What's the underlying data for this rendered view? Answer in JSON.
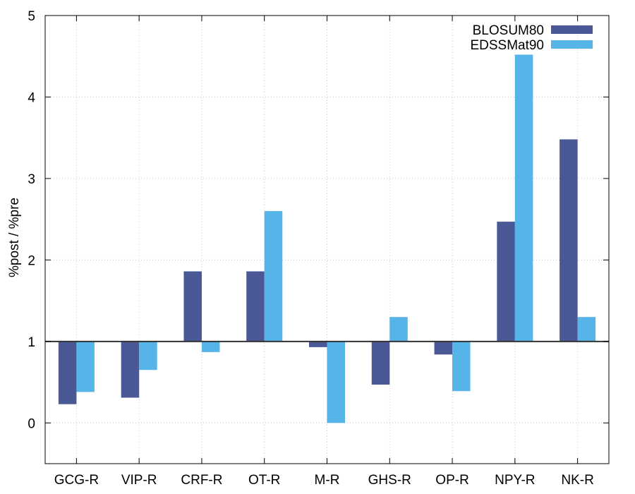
{
  "chart_data": {
    "type": "bar",
    "categories": [
      "GCG-R",
      "VIP-R",
      "CRF-R",
      "OT-R",
      "M-R",
      "GHS-R",
      "OP-R",
      "NPY-R",
      "NK-R"
    ],
    "series": [
      {
        "name": "BLOSUM80",
        "color": "#4a5996",
        "values": [
          0.23,
          0.31,
          1.86,
          1.86,
          0.93,
          0.47,
          0.84,
          2.47,
          3.48
        ]
      },
      {
        "name": "EDSSMat90",
        "color": "#56b4e9",
        "values": [
          0.38,
          0.65,
          0.87,
          2.6,
          0.0,
          1.3,
          0.39,
          4.52,
          1.3
        ]
      }
    ],
    "title": "",
    "xlabel": "",
    "ylabel": "%post / %pre",
    "ylim": [
      -0.5,
      5
    ],
    "yticks": [
      "0",
      "1",
      "2",
      "3",
      "4",
      "5"
    ],
    "baseline": 1,
    "grid": true,
    "legend_position": "top-right"
  }
}
